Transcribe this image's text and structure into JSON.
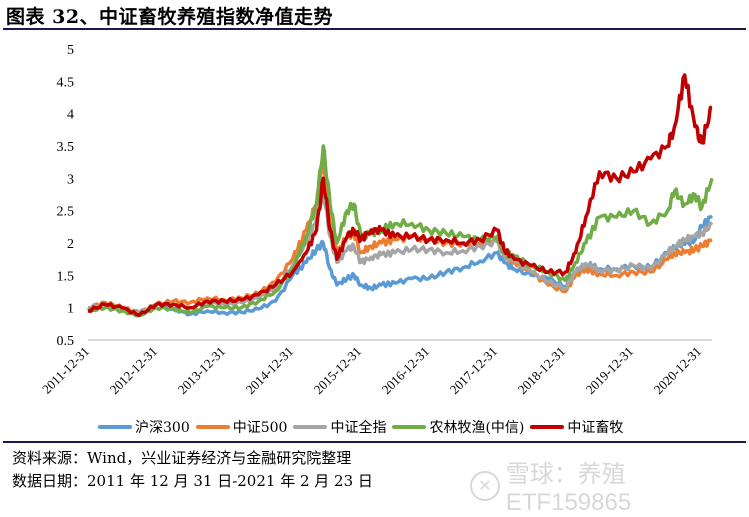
{
  "title": "图表 32、中证畜牧养殖指数净值走势",
  "footer": {
    "source": "资料来源：Wind，兴业证券经济与金融研究院整理",
    "data_date": "数据日期：2011 年 12 月 31 日-2021 年 2 月 23 日",
    "watermark": "雪球：养殖ETF159865"
  },
  "legend": [
    {
      "name": "沪深300",
      "color": "#5B9BD5"
    },
    {
      "name": "中证500",
      "color": "#ED7D31"
    },
    {
      "name": "中证全指",
      "color": "#A5A5A5"
    },
    {
      "name": "农林牧渔(中信)",
      "color": "#70AD47"
    },
    {
      "name": "中证畜牧",
      "color": "#C00000"
    }
  ],
  "chart_data": {
    "type": "line",
    "title": "中证畜牧养殖指数净值走势",
    "xlabel": "",
    "ylabel": "",
    "ylim": [
      0.5,
      5
    ],
    "yticks": [
      0.5,
      1,
      1.5,
      2,
      2.5,
      3,
      3.5,
      4,
      4.5,
      5
    ],
    "xticks": [
      "2011-12-31",
      "2012-12-31",
      "2013-12-31",
      "2014-12-31",
      "2015-12-31",
      "2016-12-31",
      "2017-12-31",
      "2018-12-31",
      "2019-12-31",
      "2020-12-31"
    ],
    "grid": false,
    "legend_position": "bottom",
    "x": [
      2012.0,
      2012.25,
      2012.5,
      2012.75,
      2013.0,
      2013.25,
      2013.5,
      2013.75,
      2014.0,
      2014.25,
      2014.5,
      2014.75,
      2015.0,
      2015.2,
      2015.35,
      2015.45,
      2015.55,
      2015.65,
      2015.8,
      2015.9,
      2016.0,
      2016.15,
      2016.3,
      2016.5,
      2016.75,
      2017.0,
      2017.25,
      2017.5,
      2017.75,
      2018.0,
      2018.1,
      2018.25,
      2018.5,
      2018.75,
      2019.0,
      2019.15,
      2019.3,
      2019.5,
      2019.75,
      2020.0,
      2020.25,
      2020.5,
      2020.6,
      2020.75,
      2020.9,
      2021.0,
      2021.15
    ],
    "series": [
      {
        "name": "沪深300",
        "color": "#5B9BD5",
        "values": [
          1.0,
          1.05,
          0.98,
          0.92,
          1.05,
          0.98,
          0.9,
          0.95,
          0.92,
          0.93,
          0.98,
          1.1,
          1.5,
          1.7,
          1.9,
          2.0,
          1.6,
          1.35,
          1.45,
          1.5,
          1.35,
          1.3,
          1.35,
          1.38,
          1.45,
          1.45,
          1.55,
          1.62,
          1.72,
          1.85,
          1.7,
          1.6,
          1.5,
          1.45,
          1.32,
          1.55,
          1.68,
          1.6,
          1.6,
          1.65,
          1.62,
          1.85,
          1.95,
          1.98,
          2.05,
          2.25,
          2.42
        ]
      },
      {
        "name": "中证500",
        "color": "#ED7D31",
        "values": [
          1.0,
          1.08,
          1.0,
          0.92,
          1.05,
          1.1,
          1.08,
          1.15,
          1.12,
          1.15,
          1.22,
          1.4,
          1.75,
          2.2,
          2.6,
          3.3,
          2.3,
          1.85,
          2.1,
          2.15,
          1.85,
          1.95,
          2.0,
          2.05,
          2.1,
          2.05,
          2.0,
          2.0,
          2.0,
          2.05,
          1.8,
          1.7,
          1.55,
          1.35,
          1.25,
          1.5,
          1.6,
          1.52,
          1.5,
          1.55,
          1.55,
          1.75,
          1.85,
          1.85,
          1.9,
          1.95,
          2.05
        ]
      },
      {
        "name": "中证全指",
        "color": "#A5A5A5",
        "values": [
          1.0,
          1.05,
          0.98,
          0.92,
          1.05,
          1.05,
          1.0,
          1.08,
          1.05,
          1.08,
          1.15,
          1.3,
          1.65,
          2.0,
          2.35,
          2.8,
          2.1,
          1.7,
          1.9,
          1.95,
          1.7,
          1.78,
          1.82,
          1.85,
          1.9,
          1.9,
          1.85,
          1.88,
          1.95,
          2.02,
          1.8,
          1.72,
          1.55,
          1.4,
          1.3,
          1.55,
          1.68,
          1.58,
          1.58,
          1.65,
          1.6,
          1.85,
          1.95,
          2.05,
          2.1,
          2.15,
          2.28
        ]
      },
      {
        "name": "农林牧渔(中信)",
        "color": "#70AD47",
        "values": [
          0.95,
          1.0,
          0.95,
          0.88,
          1.0,
          0.98,
          0.92,
          1.02,
          1.0,
          1.0,
          1.1,
          1.25,
          1.6,
          2.1,
          2.6,
          3.5,
          2.6,
          2.0,
          2.5,
          2.6,
          2.1,
          2.15,
          2.2,
          2.3,
          2.3,
          2.2,
          2.15,
          2.1,
          2.05,
          2.1,
          1.85,
          1.8,
          1.65,
          1.55,
          1.42,
          1.7,
          2.0,
          2.4,
          2.4,
          2.5,
          2.3,
          2.5,
          2.8,
          2.6,
          2.75,
          2.55,
          3.0
        ]
      },
      {
        "name": "中证畜牧",
        "color": "#C00000",
        "values": [
          0.95,
          1.05,
          1.0,
          0.88,
          1.05,
          1.05,
          1.0,
          1.1,
          1.1,
          1.12,
          1.2,
          1.35,
          1.55,
          1.85,
          2.2,
          3.0,
          2.2,
          1.75,
          2.1,
          2.2,
          2.05,
          2.2,
          2.2,
          2.1,
          2.1,
          2.05,
          2.05,
          2.0,
          2.05,
          2.2,
          1.9,
          1.75,
          1.65,
          1.55,
          1.55,
          1.85,
          2.4,
          3.1,
          3.0,
          3.1,
          3.3,
          3.5,
          3.8,
          4.6,
          3.8,
          3.55,
          4.1
        ]
      }
    ]
  }
}
